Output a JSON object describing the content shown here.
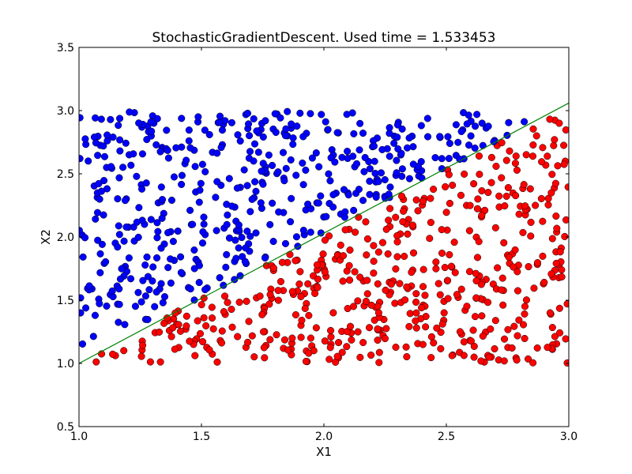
{
  "chart_data": {
    "type": "scatter",
    "title": "StochasticGradientDescent. Used time = 1.533453",
    "xlabel": "X1",
    "ylabel": "X2",
    "xlim": [
      1.0,
      3.0
    ],
    "ylim": [
      0.5,
      3.5
    ],
    "xticks": [
      "1.0",
      "1.5",
      "2.0",
      "2.5",
      "3.0"
    ],
    "yticks": [
      "0.5",
      "1.0",
      "1.5",
      "2.0",
      "2.5",
      "3.0",
      "3.5"
    ],
    "grid": false,
    "colors": {
      "class_upper": "#0000ff",
      "class_lower": "#ff0000",
      "boundary": "#008000"
    },
    "point_count": 1000,
    "point_x_range": [
      1.0,
      3.0
    ],
    "point_y_range": [
      1.0,
      3.0
    ],
    "decision_boundary": {
      "x": [
        1.0,
        3.0
      ],
      "y": [
        1.0,
        3.06
      ]
    }
  }
}
